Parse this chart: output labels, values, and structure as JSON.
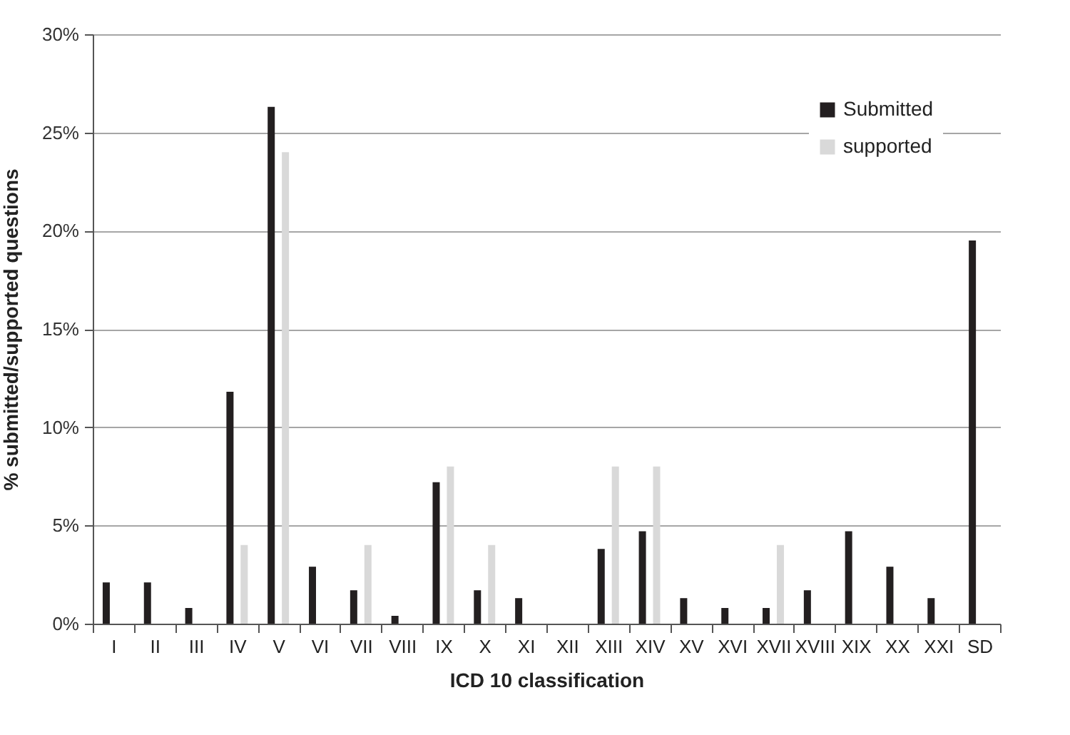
{
  "chart_data": {
    "type": "bar",
    "xlabel": "ICD 10 classification",
    "ylabel": "% submitted/supported questions",
    "categories": [
      "I",
      "II",
      "III",
      "IV",
      "V",
      "VI",
      "VII",
      "VIII",
      "IX",
      "X",
      "XI",
      "XII",
      "XIII",
      "XIV",
      "XV",
      "XVI",
      "XVII",
      "XVIII",
      "XIX",
      "XX",
      "XXI",
      "SD"
    ],
    "series": [
      {
        "name": "Submitted",
        "color": "#231f20",
        "values": [
          2.1,
          2.1,
          0.8,
          11.8,
          26.3,
          2.9,
          1.7,
          0.4,
          7.2,
          1.7,
          1.3,
          0,
          3.8,
          4.7,
          1.3,
          0.8,
          0.8,
          1.7,
          4.7,
          2.9,
          1.3,
          19.5
        ]
      },
      {
        "name": "supported",
        "color": "#d9d9d9",
        "values": [
          0,
          0,
          0,
          4,
          24,
          0,
          4,
          0,
          8,
          4,
          0,
          0,
          8,
          8,
          0,
          0,
          4,
          0,
          0,
          0,
          0,
          0
        ]
      }
    ],
    "ylim": [
      0,
      30
    ],
    "yticks": [
      {
        "value": 0,
        "label": "0%"
      },
      {
        "value": 5,
        "label": "5%"
      },
      {
        "value": 10,
        "label": "10%"
      },
      {
        "value": 15,
        "label": "15%"
      },
      {
        "value": 20,
        "label": "20%"
      },
      {
        "value": 25,
        "label": "25%"
      },
      {
        "value": 30,
        "label": "30%"
      }
    ],
    "grid": "y",
    "legend": "top right"
  }
}
